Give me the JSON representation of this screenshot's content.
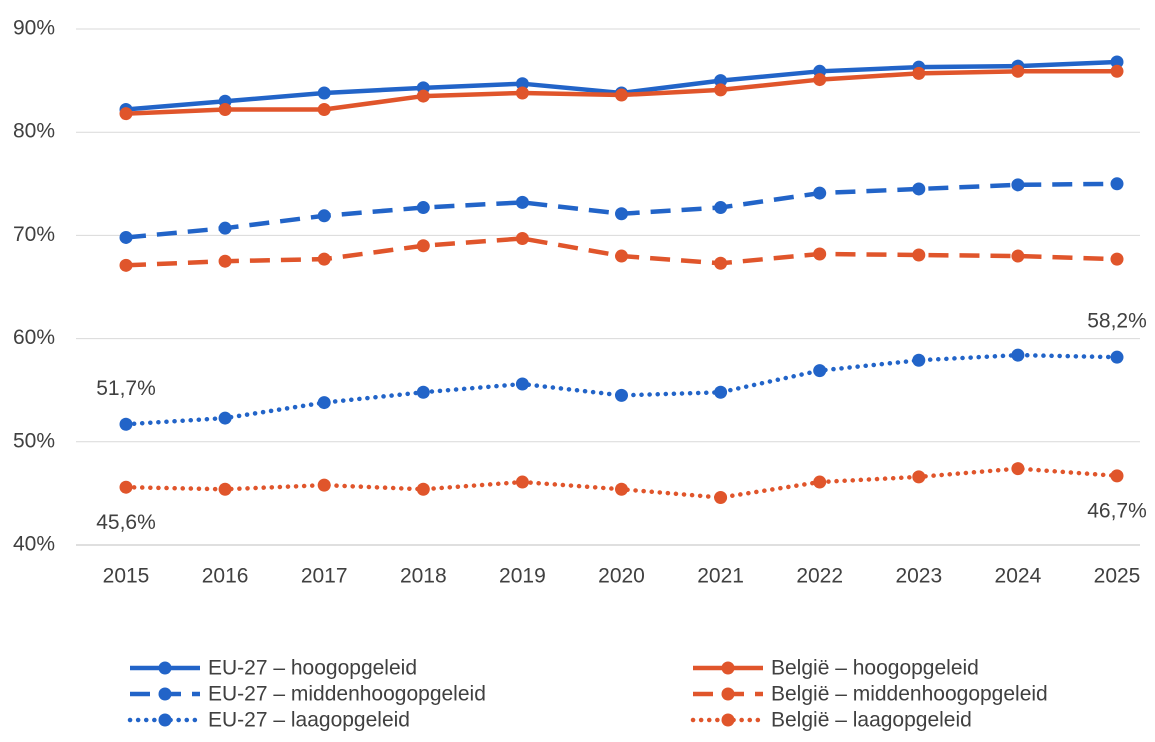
{
  "chart_data": {
    "type": "line",
    "categories": [
      "2015",
      "2016",
      "2017",
      "2018",
      "2019",
      "2020",
      "2021",
      "2022",
      "2023",
      "2024",
      "2025"
    ],
    "ylim": [
      40,
      90
    ],
    "yticks": [
      {
        "value": 40,
        "label": "40%"
      },
      {
        "value": 50,
        "label": "50%"
      },
      {
        "value": 60,
        "label": "60%"
      },
      {
        "value": 70,
        "label": "70%"
      },
      {
        "value": 80,
        "label": "80%"
      },
      {
        "value": 90,
        "label": "90%"
      }
    ],
    "grid": true,
    "series": [
      {
        "name": "EU-27 – hoogopgeleid",
        "color": "#2264c8",
        "dash": "solid",
        "values": [
          82.2,
          83.0,
          83.8,
          84.3,
          84.7,
          83.8,
          85.0,
          85.9,
          86.3,
          86.4,
          86.8
        ]
      },
      {
        "name": "België – hoogopgeleid",
        "color": "#e0552b",
        "dash": "solid",
        "values": [
          81.8,
          82.2,
          82.2,
          83.5,
          83.8,
          83.6,
          84.1,
          85.1,
          85.7,
          85.9,
          85.9
        ]
      },
      {
        "name": "EU-27 – middenhoogopgeleid",
        "color": "#2264c8",
        "dash": "dashed",
        "values": [
          69.8,
          70.7,
          71.9,
          72.7,
          73.2,
          72.1,
          72.7,
          74.1,
          74.5,
          74.9,
          75.0
        ]
      },
      {
        "name": "België – middenhoogopgeleid",
        "color": "#e0552b",
        "dash": "dashed",
        "values": [
          67.1,
          67.5,
          67.7,
          69.0,
          69.7,
          68.0,
          67.3,
          68.2,
          68.1,
          68.0,
          67.7
        ]
      },
      {
        "name": "EU-27 – laagopgeleid",
        "color": "#2264c8",
        "dash": "dotted",
        "values": [
          51.7,
          52.3,
          53.8,
          54.8,
          55.6,
          54.5,
          54.8,
          56.9,
          57.9,
          58.4,
          58.2
        ],
        "value_labels": [
          "51,7%",
          null,
          null,
          null,
          null,
          null,
          null,
          null,
          null,
          null,
          "58,2%"
        ]
      },
      {
        "name": "België – laagopgeleid",
        "color": "#e0552b",
        "dash": "dotted",
        "values": [
          45.6,
          45.4,
          45.8,
          45.4,
          46.1,
          45.4,
          44.6,
          46.1,
          46.6,
          47.4,
          46.7
        ],
        "value_labels": [
          "45,6%",
          null,
          null,
          null,
          null,
          null,
          null,
          null,
          null,
          null,
          "46,7%"
        ]
      }
    ]
  }
}
